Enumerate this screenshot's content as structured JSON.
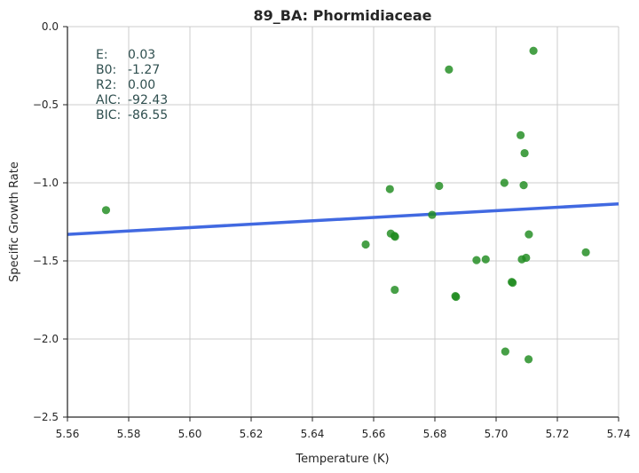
{
  "chart_data": {
    "type": "scatter",
    "title": "89_BA: Phormidiaceae",
    "xlabel": "Temperature (K)",
    "ylabel": "Specific Growth Rate",
    "xlim": [
      5.56,
      5.74
    ],
    "ylim": [
      -2.5,
      0.0
    ],
    "x_ticks": [
      "5.56",
      "5.58",
      "5.60",
      "5.62",
      "5.64",
      "5.66",
      "5.68",
      "5.70",
      "5.72",
      "5.74"
    ],
    "y_ticks": [
      "0.0",
      "−0.5",
      "−1.0",
      "−1.5",
      "−2.0",
      "−2.5"
    ],
    "grid": true,
    "point_color": "#1e8b1e",
    "line_color": "#4169e1",
    "points": [
      {
        "x": 5.5726,
        "y": -1.175
      },
      {
        "x": 5.6574,
        "y": -1.395
      },
      {
        "x": 5.6653,
        "y": -1.04
      },
      {
        "x": 5.6656,
        "y": -1.325
      },
      {
        "x": 5.6668,
        "y": -1.34
      },
      {
        "x": 5.667,
        "y": -1.345
      },
      {
        "x": 5.6669,
        "y": -1.685
      },
      {
        "x": 5.6791,
        "y": -1.205
      },
      {
        "x": 5.6814,
        "y": -1.02
      },
      {
        "x": 5.6846,
        "y": -0.275
      },
      {
        "x": 5.6867,
        "y": -1.725
      },
      {
        "x": 5.6869,
        "y": -1.73
      },
      {
        "x": 5.6936,
        "y": -1.495
      },
      {
        "x": 5.6966,
        "y": -1.49
      },
      {
        "x": 5.7027,
        "y": -1.0
      },
      {
        "x": 5.703,
        "y": -2.08
      },
      {
        "x": 5.7051,
        "y": -1.635
      },
      {
        "x": 5.7054,
        "y": -1.64
      },
      {
        "x": 5.708,
        "y": -0.695
      },
      {
        "x": 5.7084,
        "y": -1.49
      },
      {
        "x": 5.709,
        "y": -1.015
      },
      {
        "x": 5.7093,
        "y": -0.81
      },
      {
        "x": 5.7098,
        "y": -1.48
      },
      {
        "x": 5.7106,
        "y": -2.13
      },
      {
        "x": 5.7107,
        "y": -1.33
      },
      {
        "x": 5.7122,
        "y": -0.155
      },
      {
        "x": 5.7293,
        "y": -1.445
      }
    ],
    "fit_line": {
      "x": [
        5.56,
        5.74
      ],
      "y": [
        -1.33,
        -1.135
      ]
    },
    "stats": [
      {
        "label": "E:",
        "value": "0.03"
      },
      {
        "label": "B0:",
        "value": "-1.27"
      },
      {
        "label": "R2:",
        "value": "0.00"
      },
      {
        "label": "AIC:",
        "value": "-92.43"
      },
      {
        "label": "BIC:",
        "value": "-86.55"
      }
    ]
  }
}
